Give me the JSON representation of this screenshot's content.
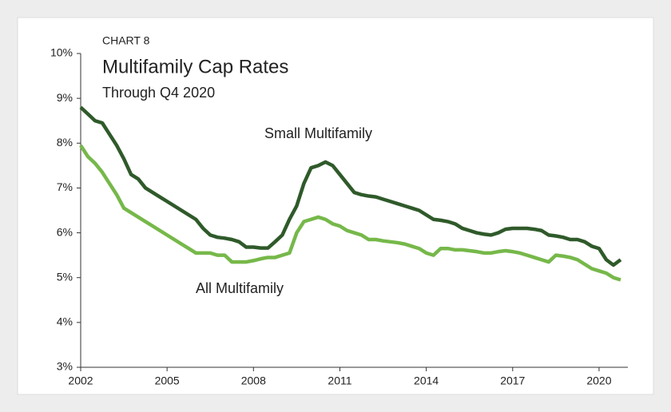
{
  "chart_data": {
    "type": "line",
    "label": "CHART 8",
    "title": "Multifamily Cap Rates",
    "subtitle": "Through Q4 2020",
    "annotations": [
      "Small Multifamily",
      "All Multifamily"
    ],
    "x": [
      2002,
      2002.25,
      2002.5,
      2002.75,
      2003,
      2003.25,
      2003.5,
      2003.75,
      2004,
      2004.25,
      2004.5,
      2004.75,
      2005,
      2005.25,
      2005.5,
      2005.75,
      2006,
      2006.25,
      2006.5,
      2006.75,
      2007,
      2007.25,
      2007.5,
      2007.75,
      2008,
      2008.25,
      2008.5,
      2008.75,
      2009,
      2009.25,
      2009.5,
      2009.75,
      2010,
      2010.25,
      2010.5,
      2010.75,
      2011,
      2011.25,
      2011.5,
      2011.75,
      2012,
      2012.25,
      2012.5,
      2012.75,
      2013,
      2013.25,
      2013.5,
      2013.75,
      2014,
      2014.25,
      2014.5,
      2014.75,
      2015,
      2015.25,
      2015.5,
      2015.75,
      2016,
      2016.25,
      2016.5,
      2016.75,
      2017,
      2017.25,
      2017.5,
      2017.75,
      2018,
      2018.25,
      2018.5,
      2018.75,
      2019,
      2019.25,
      2019.5,
      2019.75,
      2020,
      2020.25,
      2020.5,
      2020.75
    ],
    "series": [
      {
        "name": "Small Multifamily",
        "color": "#2f5a2a",
        "values": [
          8.8,
          8.65,
          8.5,
          8.45,
          8.2,
          7.95,
          7.65,
          7.3,
          7.2,
          7.0,
          6.9,
          6.8,
          6.7,
          6.6,
          6.5,
          6.4,
          6.3,
          6.1,
          5.95,
          5.9,
          5.88,
          5.85,
          5.8,
          5.68,
          5.68,
          5.66,
          5.66,
          5.8,
          5.95,
          6.3,
          6.6,
          7.1,
          7.45,
          7.5,
          7.58,
          7.5,
          7.3,
          7.1,
          6.9,
          6.85,
          6.82,
          6.8,
          6.75,
          6.7,
          6.65,
          6.6,
          6.55,
          6.5,
          6.4,
          6.3,
          6.28,
          6.25,
          6.2,
          6.1,
          6.05,
          6.0,
          5.97,
          5.95,
          6.0,
          6.08,
          6.1,
          6.1,
          6.1,
          6.08,
          6.05,
          5.95,
          5.93,
          5.9,
          5.85,
          5.85,
          5.8,
          5.7,
          5.65,
          5.4,
          5.28,
          5.4
        ]
      },
      {
        "name": "All Multifamily",
        "color": "#76b84a",
        "values": [
          7.95,
          7.7,
          7.55,
          7.35,
          7.1,
          6.85,
          6.55,
          6.45,
          6.35,
          6.25,
          6.15,
          6.05,
          5.95,
          5.85,
          5.75,
          5.65,
          5.55,
          5.55,
          5.55,
          5.5,
          5.5,
          5.35,
          5.35,
          5.35,
          5.38,
          5.42,
          5.45,
          5.45,
          5.5,
          5.55,
          6.0,
          6.25,
          6.3,
          6.35,
          6.3,
          6.2,
          6.15,
          6.05,
          6.0,
          5.95,
          5.85,
          5.85,
          5.82,
          5.8,
          5.78,
          5.75,
          5.7,
          5.65,
          5.55,
          5.5,
          5.65,
          5.65,
          5.62,
          5.62,
          5.6,
          5.58,
          5.55,
          5.55,
          5.58,
          5.6,
          5.58,
          5.55,
          5.5,
          5.45,
          5.4,
          5.35,
          5.5,
          5.48,
          5.45,
          5.4,
          5.3,
          5.2,
          5.15,
          5.1,
          5.0,
          4.95
        ]
      }
    ],
    "xlim": [
      2002,
      2021
    ],
    "xticks": [
      2002,
      2005,
      2008,
      2011,
      2014,
      2017,
      2020
    ],
    "ylim": [
      3,
      10
    ],
    "yticks": [
      {
        "value": 3,
        "label": "3%"
      },
      {
        "value": 4,
        "label": "4%"
      },
      {
        "value": 5,
        "label": "5%"
      },
      {
        "value": 6,
        "label": "6%"
      },
      {
        "value": 7,
        "label": "7%"
      },
      {
        "value": 8,
        "label": "8%"
      },
      {
        "value": 9,
        "label": "9%"
      },
      {
        "value": 10,
        "label": "10%"
      }
    ],
    "grid": false
  }
}
